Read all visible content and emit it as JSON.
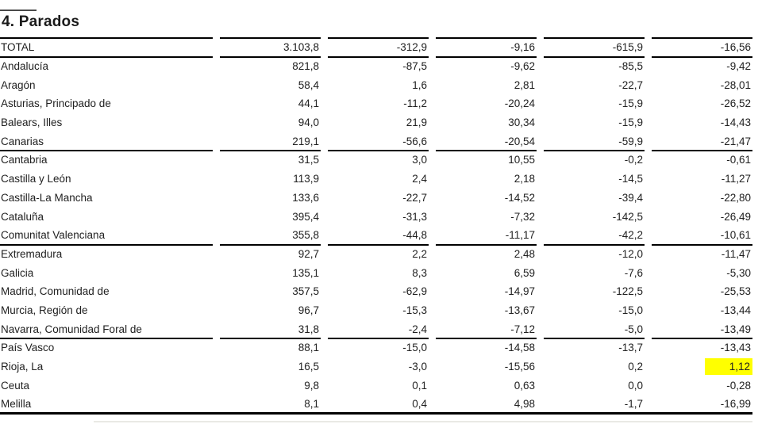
{
  "section": {
    "title": "4. Parados"
  },
  "table": {
    "highlight_color": "#ffff00",
    "columns_count": 5,
    "rows": [
      {
        "label": "TOTAL",
        "values": [
          "3.103,8",
          "-312,9",
          "-9,16",
          "-615,9",
          "-16,56"
        ],
        "rule_after": true
      },
      {
        "label": "Andalucía",
        "values": [
          "821,8",
          "-87,5",
          "-9,62",
          "-85,5",
          "-9,42"
        ]
      },
      {
        "label": "Aragón",
        "values": [
          "58,4",
          "1,6",
          "2,81",
          "-22,7",
          "-28,01"
        ]
      },
      {
        "label": "Asturias, Principado de",
        "values": [
          "44,1",
          "-11,2",
          "-20,24",
          "-15,9",
          "-26,52"
        ]
      },
      {
        "label": "Balears, Illes",
        "values": [
          "94,0",
          "21,9",
          "30,34",
          "-15,9",
          "-14,43"
        ]
      },
      {
        "label": "Canarias",
        "values": [
          "219,1",
          "-56,6",
          "-20,54",
          "-59,9",
          "-21,47"
        ],
        "rule_after": true
      },
      {
        "label": "Cantabria",
        "values": [
          "31,5",
          "3,0",
          "10,55",
          "-0,2",
          "-0,61"
        ]
      },
      {
        "label": "Castilla y León",
        "values": [
          "113,9",
          "2,4",
          "2,18",
          "-14,5",
          "-11,27"
        ]
      },
      {
        "label": "Castilla-La Mancha",
        "values": [
          "133,6",
          "-22,7",
          "-14,52",
          "-39,4",
          "-22,80"
        ]
      },
      {
        "label": "Cataluña",
        "values": [
          "395,4",
          "-31,3",
          "-7,32",
          "-142,5",
          "-26,49"
        ]
      },
      {
        "label": "Comunitat Valenciana",
        "values": [
          "355,8",
          "-44,8",
          "-11,17",
          "-42,2",
          "-10,61"
        ],
        "rule_after": true
      },
      {
        "label": "Extremadura",
        "values": [
          "92,7",
          "2,2",
          "2,48",
          "-12,0",
          "-11,47"
        ]
      },
      {
        "label": "Galicia",
        "values": [
          "135,1",
          "8,3",
          "6,59",
          "-7,6",
          "-5,30"
        ]
      },
      {
        "label": "Madrid, Comunidad de",
        "values": [
          "357,5",
          "-62,9",
          "-14,97",
          "-122,5",
          "-25,53"
        ]
      },
      {
        "label": "Murcia, Región de",
        "values": [
          "96,7",
          "-15,3",
          "-13,67",
          "-15,0",
          "-13,44"
        ]
      },
      {
        "label": "Navarra, Comunidad Foral de",
        "values": [
          "31,8",
          "-2,4",
          "-7,12",
          "-5,0",
          "-13,49"
        ],
        "rule_after": true
      },
      {
        "label": "País Vasco",
        "values": [
          "88,1",
          "-15,0",
          "-14,58",
          "-13,7",
          "-13,43"
        ]
      },
      {
        "label": "Rioja, La",
        "values": [
          "16,5",
          "-3,0",
          "-15,56",
          "0,2",
          "1,12"
        ],
        "highlight_col": 4
      },
      {
        "label": "Ceuta",
        "values": [
          "9,8",
          "0,1",
          "0,63",
          "0,0",
          "-0,28"
        ]
      },
      {
        "label": "Melilla",
        "values": [
          "8,1",
          "0,4",
          "4,98",
          "-1,7",
          "-16,99"
        ]
      }
    ]
  }
}
